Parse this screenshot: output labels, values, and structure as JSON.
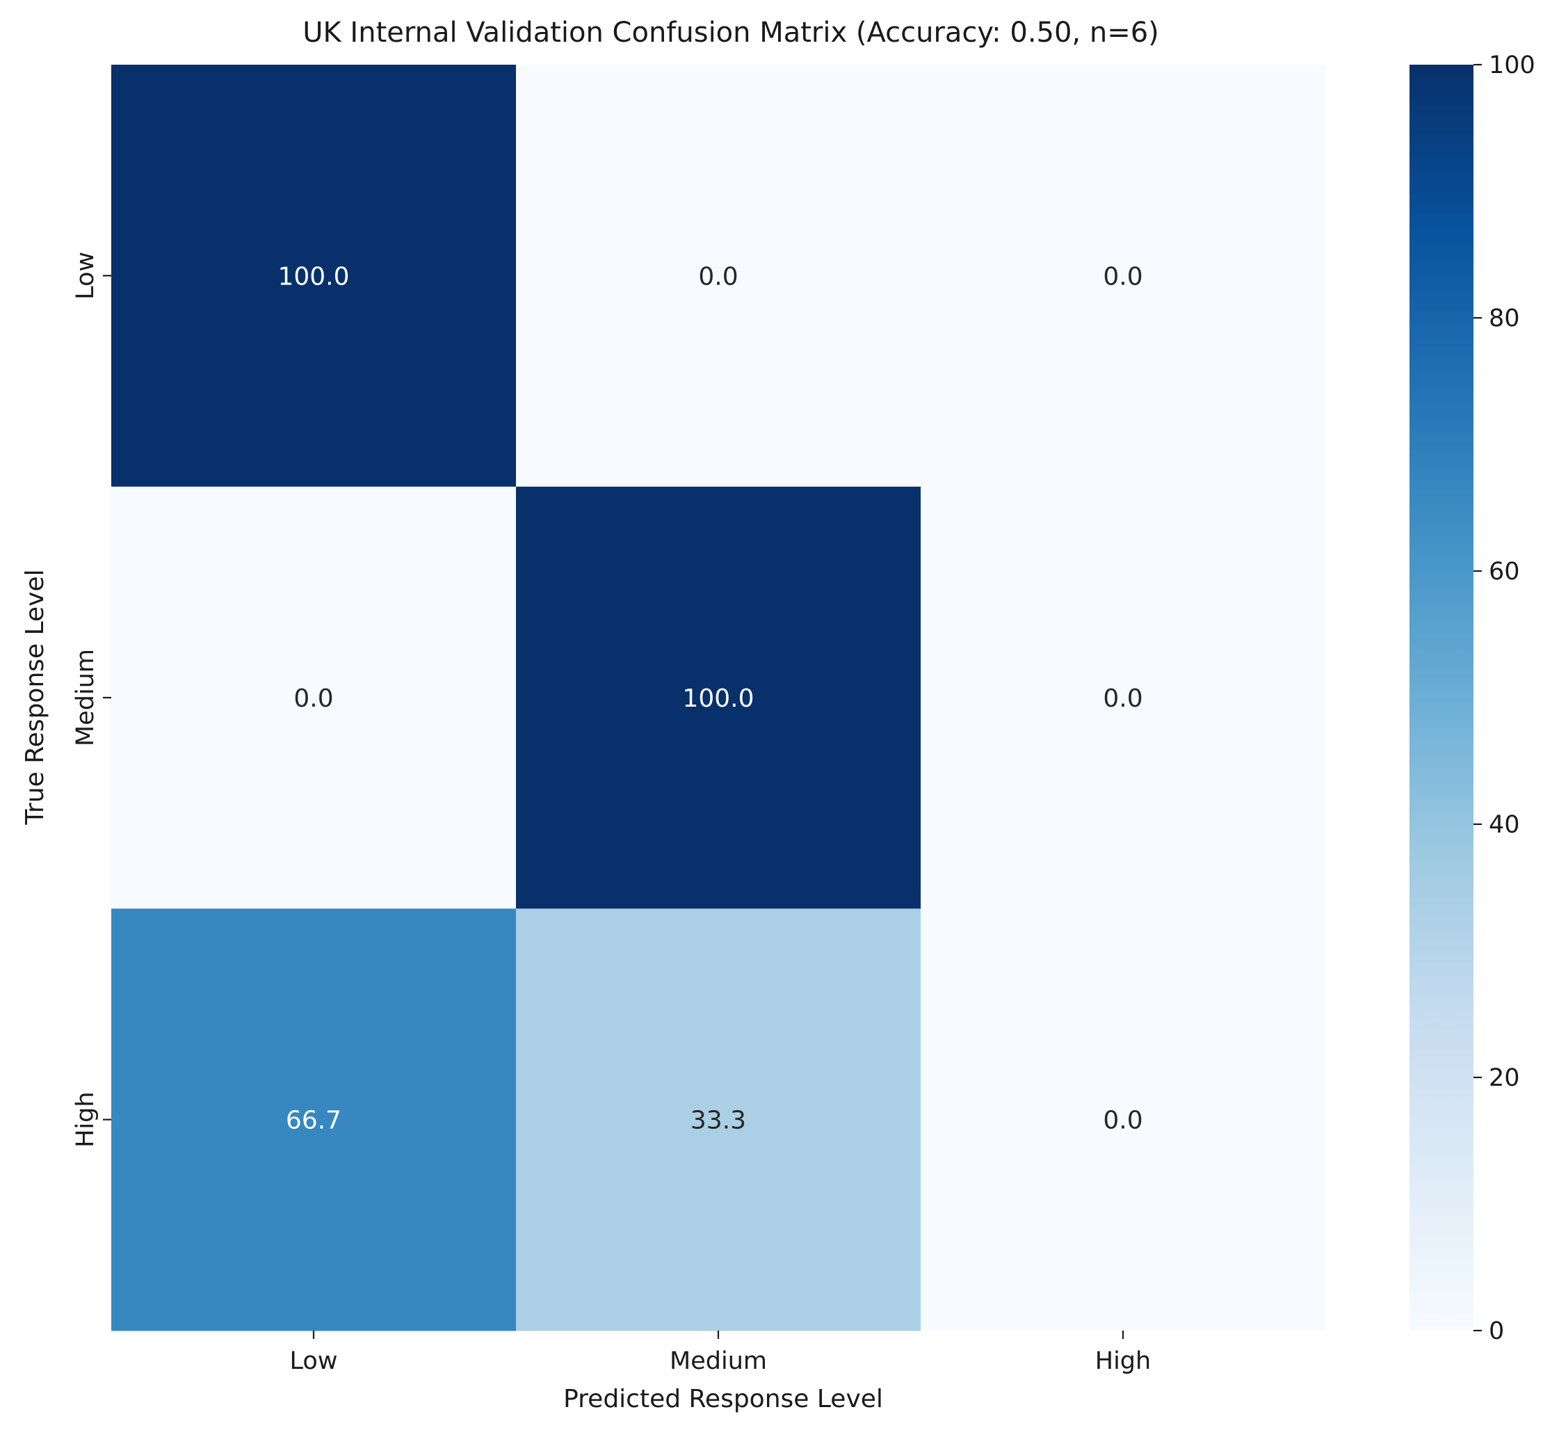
{
  "chart_data": {
    "type": "heatmap",
    "title": "UK Internal Validation Confusion Matrix (Accuracy: 0.50, n=6)",
    "xlabel": "Predicted Response Level",
    "ylabel": "True Response Level",
    "x_categories": [
      "Low",
      "Medium",
      "High"
    ],
    "y_categories": [
      "Low",
      "Medium",
      "High"
    ],
    "values": [
      [
        100.0,
        0.0,
        0.0
      ],
      [
        0.0,
        100.0,
        0.0
      ],
      [
        66.7,
        33.3,
        0.0
      ]
    ],
    "cell_labels": [
      [
        "100.0",
        "0.0",
        "0.0"
      ],
      [
        "0.0",
        "100.0",
        "0.0"
      ],
      [
        "66.7",
        "33.3",
        "0.0"
      ]
    ],
    "colorbar": {
      "range": [
        0,
        100
      ],
      "ticks": [
        0,
        20,
        40,
        60,
        80,
        100
      ],
      "colormap": "Blues",
      "stops": [
        "#f7fbff",
        "#deebf7",
        "#c6dbef",
        "#9ecae1",
        "#6baed6",
        "#4292c6",
        "#2171b5",
        "#08519c",
        "#08306b"
      ]
    },
    "grid": false
  }
}
